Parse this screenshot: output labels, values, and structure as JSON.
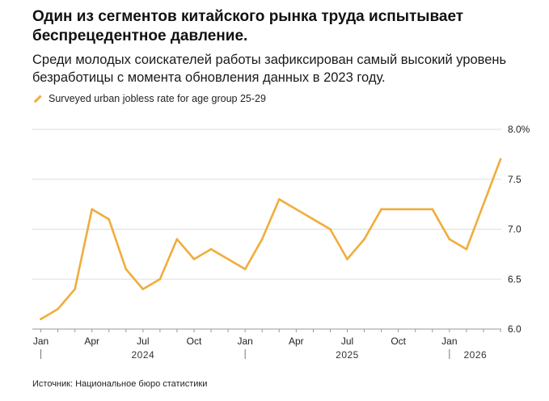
{
  "title": "Один из сегментов китайского рынка труда испытывает беспрецедентное давление.",
  "subtitle": "Среди молодых соискателей работы зафиксирован самый высокий уровень безработицы с момента обновления данных в 2023 году.",
  "source": "Источник: Национальное бюро статистики",
  "colors": {
    "line": "#f0ad3c",
    "grid": "#dddddd",
    "axis": "#999999"
  },
  "chart_data": {
    "type": "line",
    "title": "Один из сегментов китайского рынка труда испытывает беспрецедентное давление.",
    "legend": [
      "Surveyed urban jobless rate for age group 25-29"
    ],
    "legend_position": "top-left",
    "y_unit_label": "8.0%",
    "ylim": [
      6.0,
      8.0
    ],
    "yticks": [
      "6.0",
      "6.5",
      "7.0",
      "7.5",
      "8.0%"
    ],
    "ytick_values": [
      6.0,
      6.5,
      7.0,
      7.5,
      8.0
    ],
    "grid": true,
    "xtick_labels": [
      {
        "label": "Jan",
        "index": 0
      },
      {
        "label": "Apr",
        "index": 3
      },
      {
        "label": "Jul",
        "index": 6
      },
      {
        "label": "Oct",
        "index": 9
      },
      {
        "label": "Jan",
        "index": 12
      },
      {
        "label": "Apr",
        "index": 15
      },
      {
        "label": "Jul",
        "index": 18
      },
      {
        "label": "Oct",
        "index": 21
      },
      {
        "label": "Jan",
        "index": 24
      }
    ],
    "year_labels": [
      {
        "label": "2024",
        "start": 0,
        "end": 11
      },
      {
        "label": "2025",
        "start": 12,
        "end": 23
      },
      {
        "label": "2026",
        "start": 24,
        "end": 27
      }
    ],
    "x": [
      "2024-01",
      "2024-02",
      "2024-03",
      "2024-04",
      "2024-05",
      "2024-06",
      "2024-07",
      "2024-08",
      "2024-09",
      "2024-10",
      "2024-11",
      "2024-12",
      "2025-01",
      "2025-02",
      "2025-03",
      "2025-04",
      "2025-05",
      "2025-06",
      "2025-07",
      "2025-08",
      "2025-09",
      "2025-10",
      "2025-11",
      "2025-12",
      "2026-01",
      "2026-02",
      "2026-03",
      "2026-04"
    ],
    "series": [
      {
        "name": "Surveyed urban jobless rate for age group 25-29",
        "values": [
          6.1,
          6.2,
          6.4,
          7.2,
          7.1,
          6.6,
          6.4,
          6.5,
          6.9,
          6.7,
          6.8,
          null,
          6.6,
          6.9,
          7.3,
          null,
          null,
          7.0,
          6.7,
          6.9,
          7.2,
          null,
          null,
          7.2,
          6.9,
          6.8,
          null,
          7.7
        ]
      }
    ]
  }
}
